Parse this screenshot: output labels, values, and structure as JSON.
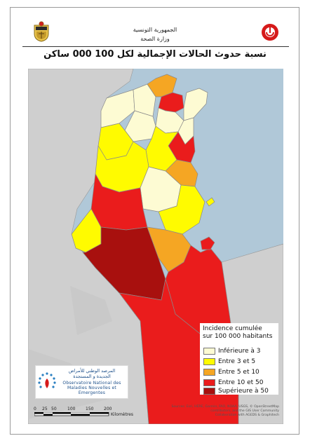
{
  "header": {
    "line1": "الجمهورية التونسية",
    "line2": "وزارة الصحة",
    "title": "نسبة حدوث الحالات الإجمالية لكل 100 000 ساكن"
  },
  "legend": {
    "title_line1": "Incidence cumulée",
    "title_line2": "sur 100 000 habitants",
    "items": [
      {
        "label": "Inférieure à 3",
        "color": "#fdfbd3"
      },
      {
        "label": "Entre 3 et 5",
        "color": "#fffb00"
      },
      {
        "label": "Entre 5 et 10",
        "color": "#f5a623"
      },
      {
        "label": "Entre 10 et 50",
        "color": "#ea1c1c"
      },
      {
        "label": "Supérieure à 50",
        "color": "#a8100e"
      }
    ]
  },
  "observatory": {
    "name_ar_line1": "المرصد الوطني للأمراض",
    "name_ar_line2": "الجديدة و المستجدة",
    "name_fr_line1": "Observatoire National des",
    "name_fr_line2": "Maladies Nouvelles et Emergentes"
  },
  "scale_bar": {
    "ticks": [
      "0",
      "25",
      "50",
      "100",
      "150",
      "200"
    ],
    "unit": "Kilomètres"
  },
  "source": {
    "line1": "Sources: Esri, HERE, Garmin, FAO, NOAA, USGS, © OpenStreetMap",
    "line2": "contributors, and the GIS User Community",
    "line3": "Collaboration with AGEDS & Graphitech"
  }
}
